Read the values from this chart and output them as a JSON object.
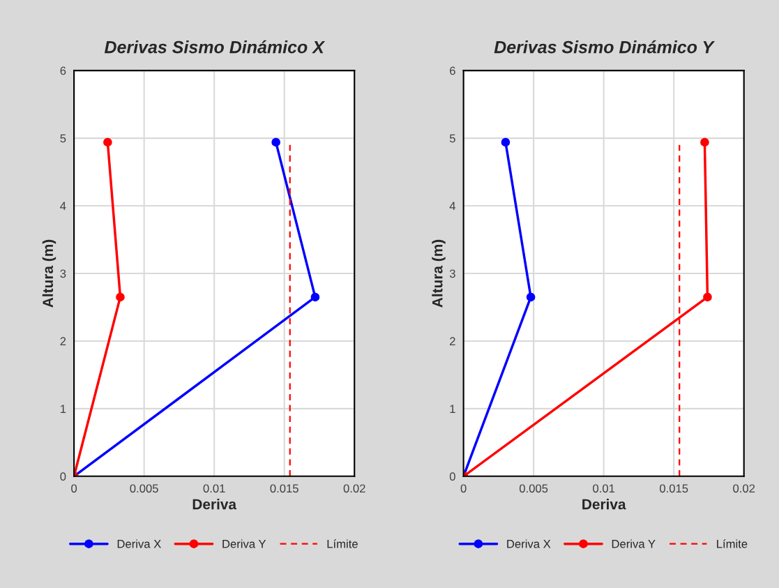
{
  "chart_data": [
    {
      "type": "line",
      "title": "Derivas Sismo Dinámico X",
      "xlabel": "Deriva",
      "ylabel": "Altura (m)",
      "xlim": [
        0,
        0.02
      ],
      "xticks": [
        0,
        0.005,
        0.01,
        0.015,
        0.02
      ],
      "ylim": [
        0,
        6
      ],
      "yticks": [
        0,
        1,
        2,
        3,
        4,
        5,
        6
      ],
      "grid": true,
      "legend": "bottom",
      "series": [
        {
          "name": "Deriva X",
          "color": "#0000ff",
          "x": [
            0,
            0.0172,
            0.0144
          ],
          "values": [
            0,
            2.65,
            4.94
          ],
          "marker": "circle",
          "line_style": "solid"
        },
        {
          "name": "Deriva Y",
          "color": "#ff0000",
          "x": [
            0,
            0.0033,
            0.0024
          ],
          "values": [
            0,
            2.65,
            4.94
          ],
          "marker": "circle",
          "line_style": "solid"
        },
        {
          "name": "Límite",
          "color": "#ff0000",
          "x": [
            0.0154,
            0.0154
          ],
          "values": [
            0,
            4.9
          ],
          "marker": "none",
          "line_style": "dashed"
        }
      ]
    },
    {
      "type": "line",
      "title": "Derivas Sismo Dinámico Y",
      "xlabel": "Deriva",
      "ylabel": "Altura (m)",
      "xlim": [
        0,
        0.02
      ],
      "xticks": [
        0,
        0.005,
        0.01,
        0.015,
        0.02
      ],
      "ylim": [
        0,
        6
      ],
      "yticks": [
        0,
        1,
        2,
        3,
        4,
        5,
        6
      ],
      "grid": true,
      "legend": "bottom",
      "series": [
        {
          "name": "Deriva X",
          "color": "#0000ff",
          "x": [
            0,
            0.0048,
            0.003
          ],
          "values": [
            0,
            2.65,
            4.94
          ],
          "marker": "circle",
          "line_style": "solid"
        },
        {
          "name": "Deriva Y",
          "color": "#ff0000",
          "x": [
            0,
            0.0174,
            0.0172
          ],
          "values": [
            0,
            2.65,
            4.94
          ],
          "marker": "circle",
          "line_style": "solid"
        },
        {
          "name": "Límite",
          "color": "#ff0000",
          "x": [
            0.0154,
            0.0154
          ],
          "values": [
            0,
            4.9
          ],
          "marker": "none",
          "line_style": "dashed"
        }
      ]
    }
  ]
}
